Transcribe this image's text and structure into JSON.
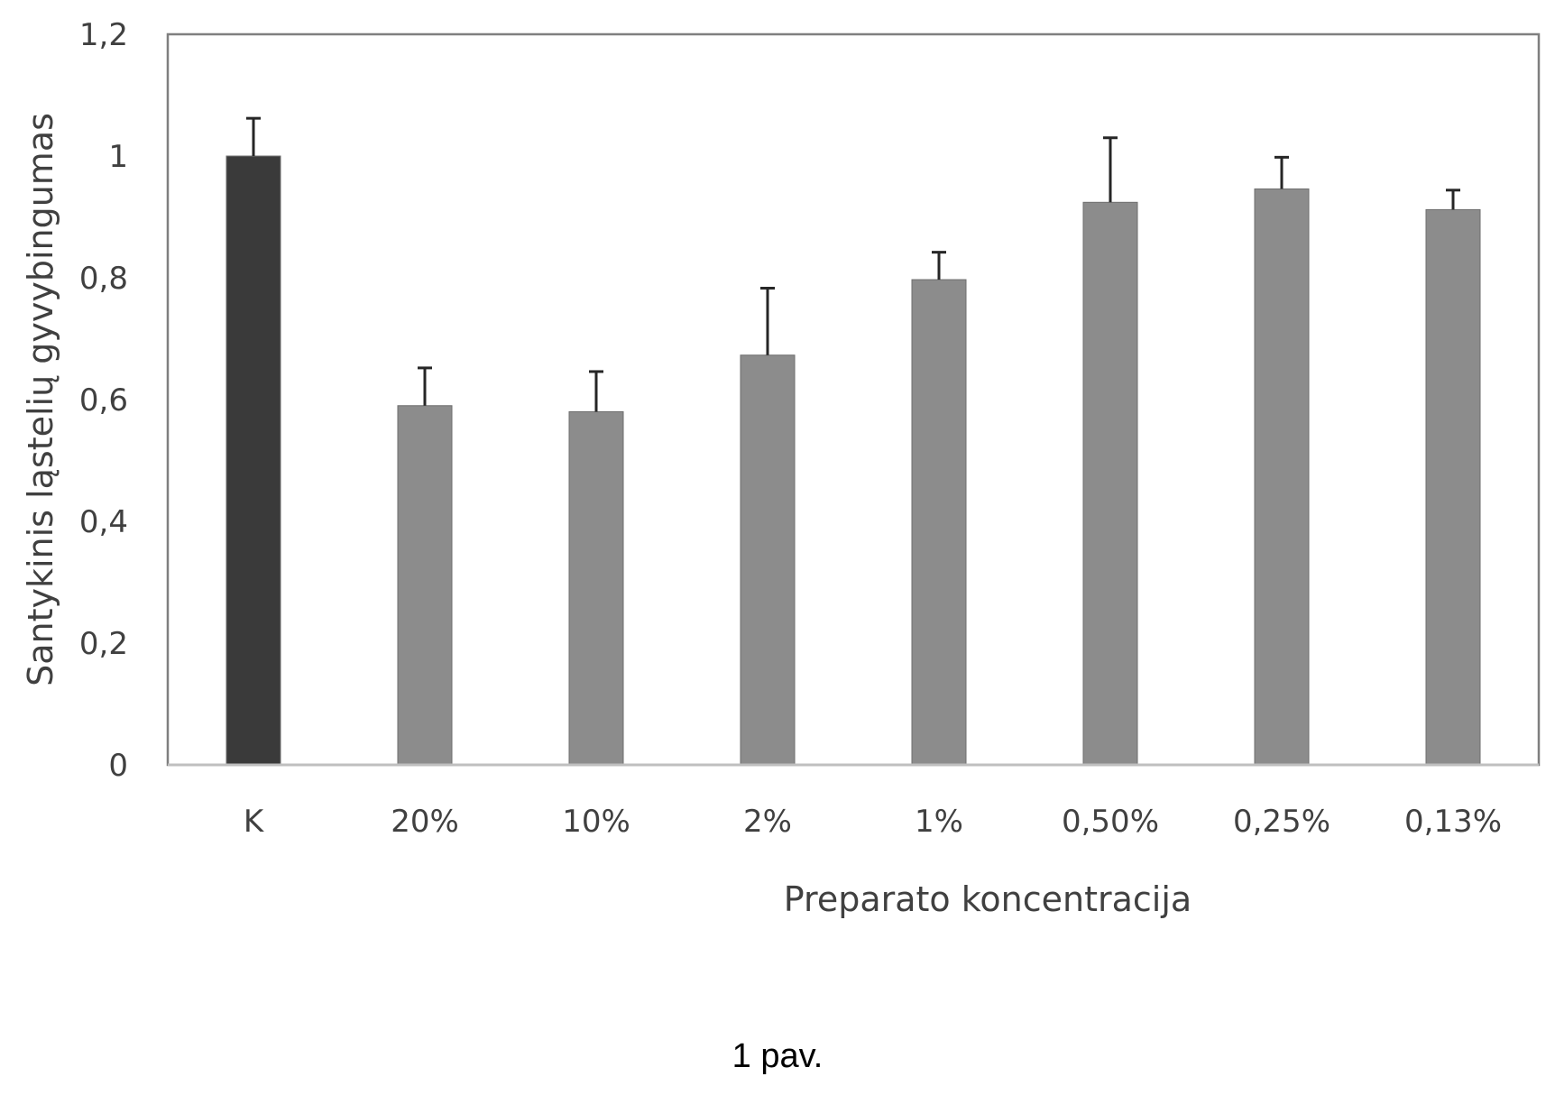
{
  "chart_data": {
    "type": "bar",
    "categories": [
      "K",
      "20%",
      "10%",
      "2%",
      "1%",
      "0,50%",
      "0,25%",
      "0,13%"
    ],
    "values": [
      1.0,
      0.59,
      0.58,
      0.673,
      0.797,
      0.924,
      0.946,
      0.912
    ],
    "error_plus": [
      0.062,
      0.062,
      0.066,
      0.11,
      0.045,
      0.106,
      0.052,
      0.032
    ],
    "bar_colors": [
      "#3a3a3a",
      "#8c8c8c",
      "#8c8c8c",
      "#8c8c8c",
      "#8c8c8c",
      "#8c8c8c",
      "#8c8c8c",
      "#8c8c8c"
    ],
    "ylim": [
      0,
      1.2
    ],
    "yticks": [
      0,
      0.2,
      0.4,
      0.6,
      0.8,
      1,
      1.2
    ],
    "ytick_labels": [
      "0",
      "0,2",
      "0,4",
      "0,6",
      "0,8",
      "1",
      "1,2"
    ],
    "xlabel": "Preparato koncentracija",
    "ylabel": "Santykinis ląstelių gyvybingumas",
    "title": "",
    "grid": false,
    "legend": "none"
  },
  "caption": "1 pav."
}
